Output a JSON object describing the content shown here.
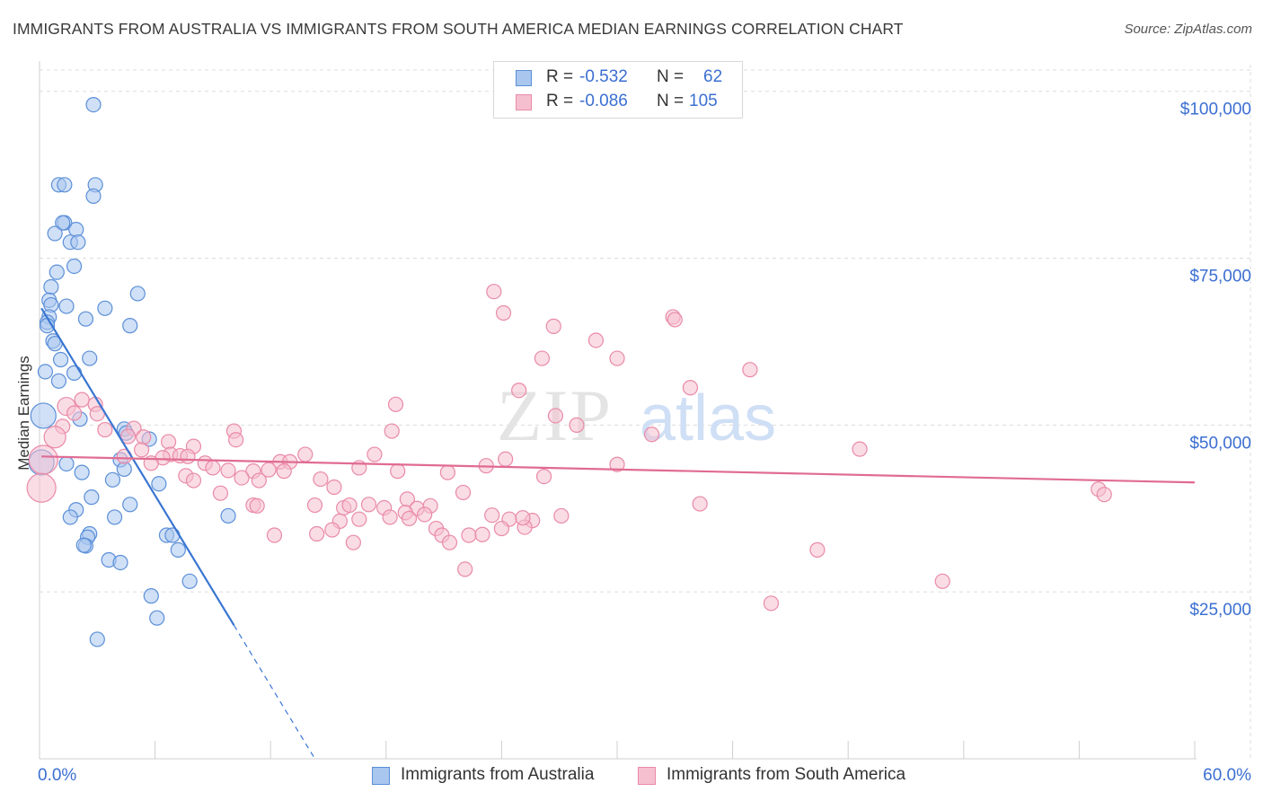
{
  "header": {
    "title": "IMMIGRANTS FROM AUSTRALIA VS IMMIGRANTS FROM SOUTH AMERICA MEDIAN EARNINGS CORRELATION CHART",
    "source": "Source: ZipAtlas.com"
  },
  "colors": {
    "blue_fill": "#a9c6ef",
    "blue_stroke": "#5b8fd8",
    "blue_line": "#3a76d2",
    "pink_fill": "#f6bfd0",
    "pink_stroke": "#e98aa8",
    "pink_line": "#e06b93",
    "axis_text": "#3b6fd1",
    "grid": "#dcdcdc"
  },
  "legend": {
    "rows": [
      {
        "r_label": "R =",
        "r_value": "-0.532",
        "n_label": "N =",
        "n_value": "62"
      },
      {
        "r_label": "R =",
        "r_value": "-0.086",
        "n_label": "N =",
        "n_value": "105"
      }
    ]
  },
  "bottom_legend": {
    "series1": "Immigrants from Australia",
    "series2": "Immigrants from South America"
  },
  "watermark": {
    "part1": "ZIP",
    "part2": "atlas"
  },
  "chart_data": {
    "type": "scatter",
    "xlabel": "",
    "ylabel": "Median Earnings",
    "x_unit": "%",
    "xlim": [
      0,
      60
    ],
    "ylim": [
      0,
      104000
    ],
    "x_tick_labels": [
      {
        "value": 0,
        "label": "0.0%"
      },
      {
        "value": 60,
        "label": "60.0%"
      }
    ],
    "y_ticks": [
      {
        "value": 25000,
        "label": "$25,000"
      },
      {
        "value": 50000,
        "label": "$50,000"
      },
      {
        "value": 75000,
        "label": "$75,000"
      },
      {
        "value": 100000,
        "label": "$100,000"
      }
    ],
    "grid": true,
    "legend_position": "top-center",
    "series": [
      {
        "name": "Immigrants from Australia",
        "color_key": "blue",
        "r": -0.532,
        "n": 62,
        "trend": {
          "x0": 0.1,
          "y0": 67500,
          "x1": 10.1,
          "y1": 20000,
          "dash_to_x": 14.3,
          "dash_to_y": 0
        },
        "points": [
          [
            2.8,
            98000
          ],
          [
            1.0,
            86000
          ],
          [
            1.3,
            86000
          ],
          [
            2.9,
            86000
          ],
          [
            2.8,
            84300
          ],
          [
            1.3,
            80300
          ],
          [
            1.2,
            80300
          ],
          [
            1.9,
            79300
          ],
          [
            0.8,
            78700
          ],
          [
            1.6,
            77400
          ],
          [
            2.0,
            77400
          ],
          [
            1.8,
            73800
          ],
          [
            0.9,
            72900
          ],
          [
            0.6,
            70700
          ],
          [
            5.1,
            69700
          ],
          [
            0.5,
            68700
          ],
          [
            0.6,
            68000
          ],
          [
            1.4,
            67800
          ],
          [
            3.4,
            67500
          ],
          [
            0.5,
            66200
          ],
          [
            2.4,
            65900
          ],
          [
            0.4,
            65400
          ],
          [
            4.7,
            64900
          ],
          [
            0.4,
            64900
          ],
          [
            0.7,
            62600
          ],
          [
            0.8,
            62200
          ],
          [
            2.6,
            60000
          ],
          [
            1.1,
            59800
          ],
          [
            0.3,
            58000
          ],
          [
            1.8,
            57800
          ],
          [
            1.0,
            56600
          ],
          [
            0.2,
            51400
          ],
          [
            2.1,
            50900
          ],
          [
            4.4,
            49400
          ],
          [
            4.5,
            48800
          ],
          [
            5.7,
            47900
          ],
          [
            4.2,
            44800
          ],
          [
            0.1,
            44400
          ],
          [
            1.4,
            44200
          ],
          [
            4.4,
            43400
          ],
          [
            2.2,
            42900
          ],
          [
            3.8,
            41800
          ],
          [
            6.2,
            41200
          ],
          [
            2.7,
            39200
          ],
          [
            4.7,
            38100
          ],
          [
            1.9,
            37300
          ],
          [
            1.6,
            36200
          ],
          [
            3.9,
            36200
          ],
          [
            9.8,
            36400
          ],
          [
            2.6,
            33700
          ],
          [
            2.5,
            33200
          ],
          [
            6.6,
            33500
          ],
          [
            6.9,
            33500
          ],
          [
            2.4,
            31900
          ],
          [
            2.3,
            32000
          ],
          [
            7.2,
            31300
          ],
          [
            3.6,
            29800
          ],
          [
            4.2,
            29400
          ],
          [
            7.8,
            26600
          ],
          [
            5.8,
            24400
          ],
          [
            6.1,
            21100
          ],
          [
            3.0,
            17900
          ]
        ]
      },
      {
        "name": "Immigrants from South America",
        "color_key": "pink",
        "r": -0.086,
        "n": 105,
        "trend": {
          "x0": 0.1,
          "y0": 45300,
          "x1": 60,
          "y1": 41400
        },
        "points": [
          [
            23.6,
            70000
          ],
          [
            24.1,
            66800
          ],
          [
            32.9,
            66200
          ],
          [
            33.0,
            65800
          ],
          [
            26.7,
            64800
          ],
          [
            28.9,
            62700
          ],
          [
            26.1,
            60000
          ],
          [
            30.0,
            60000
          ],
          [
            36.9,
            58300
          ],
          [
            33.8,
            55600
          ],
          [
            24.9,
            55200
          ],
          [
            2.2,
            53800
          ],
          [
            2.9,
            53100
          ],
          [
            1.4,
            52800
          ],
          [
            18.5,
            53100
          ],
          [
            1.8,
            51800
          ],
          [
            3.0,
            51700
          ],
          [
            26.8,
            51400
          ],
          [
            1.2,
            49800
          ],
          [
            27.9,
            50000
          ],
          [
            3.4,
            49300
          ],
          [
            4.9,
            49500
          ],
          [
            10.1,
            49100
          ],
          [
            18.3,
            49100
          ],
          [
            31.8,
            48600
          ],
          [
            4.6,
            48300
          ],
          [
            0.8,
            48200
          ],
          [
            5.4,
            48200
          ],
          [
            10.2,
            47800
          ],
          [
            6.7,
            47500
          ],
          [
            8.0,
            46800
          ],
          [
            5.3,
            46300
          ],
          [
            42.6,
            46400
          ],
          [
            6.8,
            45600
          ],
          [
            13.8,
            45600
          ],
          [
            17.4,
            45600
          ],
          [
            7.3,
            45400
          ],
          [
            7.7,
            45300
          ],
          [
            4.4,
            45300
          ],
          [
            6.4,
            45100
          ],
          [
            24.2,
            44900
          ],
          [
            0.2,
            44800
          ],
          [
            12.5,
            44500
          ],
          [
            13.0,
            44500
          ],
          [
            5.8,
            44300
          ],
          [
            8.6,
            44300
          ],
          [
            30.0,
            44100
          ],
          [
            16.6,
            43600
          ],
          [
            9.0,
            43600
          ],
          [
            23.2,
            43900
          ],
          [
            11.1,
            43100
          ],
          [
            9.8,
            43200
          ],
          [
            11.9,
            43300
          ],
          [
            12.7,
            43100
          ],
          [
            18.6,
            43100
          ],
          [
            21.2,
            42900
          ],
          [
            7.6,
            42400
          ],
          [
            26.2,
            42300
          ],
          [
            10.5,
            42100
          ],
          [
            8.0,
            41700
          ],
          [
            14.6,
            41900
          ],
          [
            11.4,
            41700
          ],
          [
            55.0,
            40400
          ],
          [
            55.3,
            39600
          ],
          [
            0.1,
            40600
          ],
          [
            15.3,
            40700
          ],
          [
            9.4,
            39800
          ],
          [
            22.0,
            39900
          ],
          [
            19.1,
            38900
          ],
          [
            14.3,
            38000
          ],
          [
            11.1,
            38000
          ],
          [
            15.8,
            37600
          ],
          [
            17.1,
            38100
          ],
          [
            16.1,
            38000
          ],
          [
            20.3,
            37900
          ],
          [
            34.3,
            38200
          ],
          [
            19.6,
            37500
          ],
          [
            17.9,
            37600
          ],
          [
            19.0,
            36900
          ],
          [
            20.0,
            36600
          ],
          [
            15.6,
            35600
          ],
          [
            18.2,
            36200
          ],
          [
            19.2,
            36000
          ],
          [
            23.5,
            36500
          ],
          [
            24.4,
            35900
          ],
          [
            25.6,
            35700
          ],
          [
            27.1,
            36400
          ],
          [
            16.6,
            35900
          ],
          [
            20.6,
            34500
          ],
          [
            15.2,
            34300
          ],
          [
            14.4,
            33700
          ],
          [
            20.9,
            33500
          ],
          [
            22.3,
            33500
          ],
          [
            23.0,
            33600
          ],
          [
            24.0,
            34500
          ],
          [
            12.2,
            33500
          ],
          [
            16.3,
            32400
          ],
          [
            21.3,
            32400
          ],
          [
            25.2,
            34700
          ],
          [
            40.4,
            31300
          ],
          [
            22.1,
            28400
          ],
          [
            46.9,
            26600
          ],
          [
            38.0,
            23300
          ],
          [
            25.1,
            36100
          ],
          [
            11.3,
            37900
          ]
        ]
      }
    ]
  }
}
